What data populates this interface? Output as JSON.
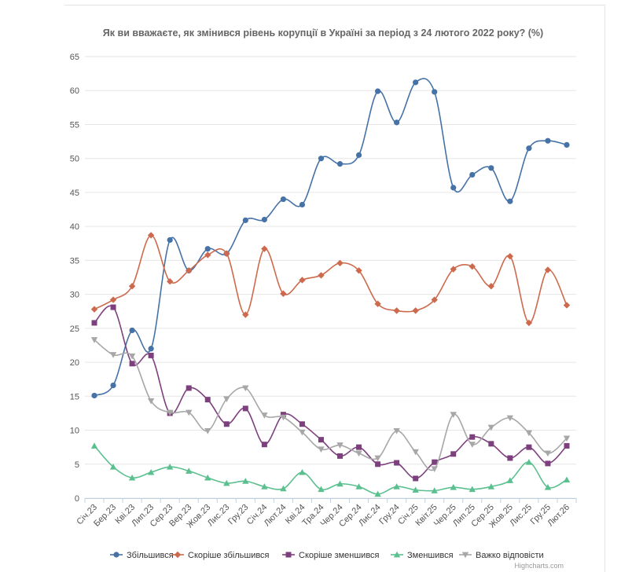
{
  "chart_data": {
    "type": "line",
    "title": "Як ви вважаєте, як змінився рівень корупції в Україні за період з 24 лютого 2022 року? (%)",
    "categories": [
      "Січ.23",
      "Бер.23",
      "Кві.23",
      "Лип.23",
      "Сер.23",
      "Вер.23",
      "Жов.23",
      "Лис.23",
      "Гру.23",
      "Січ.24",
      "Лют.24",
      "Кві.24",
      "Тра.24",
      "Чер.24",
      "Сер.24",
      "Лис.24",
      "Гру.24",
      "Січ.25",
      "Квіт.25",
      "Чер.25",
      "Лип.25",
      "Сер.25",
      "Жов.25",
      "Лис.25",
      "Гру.25",
      "Лют.26"
    ],
    "ylim": [
      0,
      65
    ],
    "yticks": [
      0,
      5,
      10,
      15,
      20,
      25,
      30,
      35,
      40,
      45,
      50,
      55,
      60,
      65
    ],
    "grid": true,
    "legend_position": "bottom",
    "series": [
      {
        "name": "Збільшився",
        "color": "#4572A7",
        "marker": "circle",
        "values": [
          15.1,
          16.6,
          24.7,
          22.0,
          38.0,
          33.5,
          36.7,
          36.0,
          40.9,
          41.0,
          44.0,
          43.2,
          50.0,
          49.2,
          50.5,
          59.9,
          55.3,
          61.2,
          59.8,
          45.7,
          47.6,
          48.6,
          43.7,
          51.5,
          52.6,
          52.0
        ]
      },
      {
        "name": "Скоріше збільшився",
        "color": "#CD6A4D",
        "marker": "diamond",
        "values": [
          27.8,
          29.2,
          31.2,
          38.7,
          31.9,
          33.5,
          35.8,
          36.0,
          27.0,
          36.7,
          30.1,
          32.1,
          32.8,
          34.6,
          33.5,
          28.6,
          27.6,
          27.6,
          29.2,
          33.7,
          34.1,
          31.2,
          35.6,
          25.8,
          33.6,
          28.4
        ]
      },
      {
        "name": "Скоріше зменшився",
        "color": "#7E3F7E",
        "marker": "square",
        "values": [
          25.8,
          28.1,
          19.8,
          21.0,
          12.5,
          16.2,
          14.5,
          10.9,
          13.2,
          7.9,
          12.3,
          10.9,
          8.6,
          6.2,
          7.5,
          5.0,
          5.2,
          2.9,
          5.3,
          6.5,
          9.0,
          8.0,
          5.9,
          7.5,
          5.1,
          7.7
        ]
      },
      {
        "name": "Зменшився",
        "color": "#5BC08F",
        "marker": "triangle",
        "values": [
          7.7,
          4.6,
          3.0,
          3.8,
          4.6,
          4.0,
          3.0,
          2.2,
          2.5,
          1.7,
          1.4,
          3.8,
          1.3,
          2.1,
          1.7,
          0.6,
          1.7,
          1.2,
          1.1,
          1.6,
          1.3,
          1.7,
          2.6,
          5.3,
          1.6,
          2.7
        ]
      },
      {
        "name": "Важко відповісти",
        "color": "#A7A7A7",
        "marker": "triangle-down",
        "values": [
          23.3,
          21.1,
          20.9,
          14.3,
          12.6,
          12.6,
          9.9,
          14.6,
          16.2,
          12.2,
          11.9,
          9.7,
          7.2,
          7.8,
          6.6,
          5.9,
          9.9,
          6.8,
          4.3,
          12.3,
          7.9,
          10.4,
          11.8,
          9.6,
          6.6,
          8.8
        ]
      }
    ]
  },
  "credits": "Highcharts.com"
}
